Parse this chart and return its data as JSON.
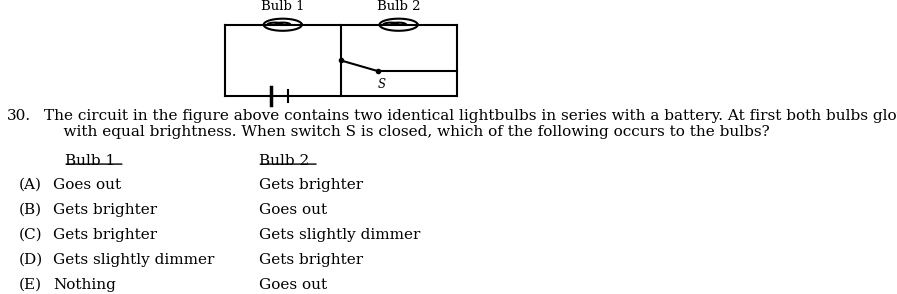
{
  "background_color": "#ffffff",
  "question_number": "30.",
  "question_text": "The circuit in the figure above contains two identical lightbulbs in series with a battery. At first both bulbs glow\n    with equal brightness. When switch S is closed, which of the following occurs to the bulbs?",
  "col1_header": "Bulb 1",
  "col2_header": "Bulb 2",
  "options": [
    {
      "letter": "(A)",
      "col1": "Goes out",
      "col2": "Gets brighter"
    },
    {
      "letter": "(B)",
      "col1": "Gets brighter",
      "col2": "Goes out"
    },
    {
      "letter": "(C)",
      "col1": "Gets brighter",
      "col2": "Gets slightly dimmer"
    },
    {
      "letter": "(D)",
      "col1": "Gets slightly dimmer",
      "col2": "Gets brighter"
    },
    {
      "letter": "(E)",
      "col1": "Nothing",
      "col2": "Goes out"
    }
  ],
  "font_family": "serif",
  "font_size_question": 11,
  "font_size_options": 11,
  "text_color": "#000000"
}
